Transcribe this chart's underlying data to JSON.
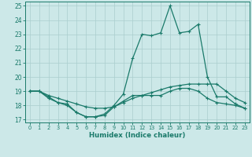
{
  "xlabel": "Humidex (Indice chaleur)",
  "bg_color": "#cce8e8",
  "grid_color": "#aacece",
  "line_color": "#1a7a6a",
  "xlim": [
    -0.5,
    23.5
  ],
  "ylim": [
    16.8,
    25.3
  ],
  "yticks": [
    17,
    18,
    19,
    20,
    21,
    22,
    23,
    24,
    25
  ],
  "xticks": [
    0,
    1,
    2,
    3,
    4,
    5,
    6,
    7,
    8,
    9,
    10,
    11,
    12,
    13,
    14,
    15,
    16,
    17,
    18,
    19,
    20,
    21,
    22,
    23
  ],
  "line1_x": [
    0,
    1,
    2,
    3,
    4,
    5,
    6,
    7,
    8,
    9,
    10,
    11,
    12,
    13,
    14,
    15,
    16,
    17,
    18,
    19,
    20,
    21,
    22,
    23
  ],
  "line1_y": [
    19.0,
    19.0,
    18.5,
    18.2,
    18.0,
    17.5,
    17.2,
    17.2,
    17.3,
    17.9,
    18.3,
    18.7,
    18.7,
    18.7,
    18.7,
    19.0,
    19.2,
    19.2,
    19.0,
    18.5,
    18.2,
    18.1,
    18.0,
    17.8
  ],
  "line2_x": [
    0,
    1,
    2,
    3,
    4,
    5,
    6,
    7,
    8,
    9,
    10,
    11,
    12,
    13,
    14,
    15,
    16,
    17,
    18,
    19,
    20,
    21,
    22,
    23
  ],
  "line2_y": [
    19.0,
    19.0,
    18.6,
    18.2,
    18.1,
    17.5,
    17.2,
    17.2,
    17.4,
    18.0,
    18.8,
    21.3,
    23.0,
    22.9,
    23.1,
    25.0,
    23.1,
    23.2,
    23.7,
    20.0,
    18.6,
    18.6,
    18.1,
    17.8
  ],
  "line3_x": [
    0,
    1,
    2,
    3,
    4,
    5,
    6,
    7,
    8,
    9,
    10,
    11,
    12,
    13,
    14,
    15,
    16,
    17,
    18,
    19,
    20,
    21,
    22,
    23
  ],
  "line3_y": [
    19.0,
    19.0,
    18.7,
    18.5,
    18.3,
    18.1,
    17.9,
    17.8,
    17.8,
    17.9,
    18.2,
    18.5,
    18.7,
    18.9,
    19.1,
    19.3,
    19.4,
    19.5,
    19.5,
    19.5,
    19.5,
    19.0,
    18.5,
    18.2
  ]
}
